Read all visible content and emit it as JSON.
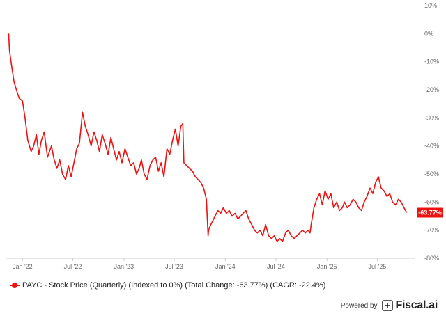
{
  "chart_data": {
    "type": "line",
    "x_tick_labels": [
      "Jan '22",
      "Jul '22",
      "Jan '23",
      "Jul '23",
      "Jan '24",
      "Jul '24",
      "Jan '25",
      "Jul '25"
    ],
    "y_tick_labels": [
      "10%",
      "0%",
      "-10%",
      "-20%",
      "-30%",
      "-40%",
      "-50%",
      "-60%",
      "-70%",
      "-80%"
    ],
    "ylim": [
      -80,
      10
    ],
    "xlim": [
      "2021-11-01",
      "2025-11-15"
    ],
    "grid": false,
    "legend_position": "bottom-left",
    "series": [
      {
        "name": "PAYC - Stock Price (Quarterly) (Indexed to 0%) (Total Change: -63.77%) (CAGR: -22.4%)",
        "color": "#ee1111",
        "x": [
          "2021-11-12",
          "2021-11-15",
          "2021-11-22",
          "2021-12-01",
          "2021-12-10",
          "2021-12-20",
          "2022-01-01",
          "2022-01-10",
          "2022-01-20",
          "2022-02-01",
          "2022-02-10",
          "2022-02-20",
          "2022-03-01",
          "2022-03-10",
          "2022-03-20",
          "2022-04-01",
          "2022-04-15",
          "2022-04-25",
          "2022-05-05",
          "2022-05-15",
          "2022-05-25",
          "2022-06-05",
          "2022-06-15",
          "2022-06-25",
          "2022-07-05",
          "2022-07-15",
          "2022-07-25",
          "2022-08-05",
          "2022-08-15",
          "2022-08-25",
          "2022-09-05",
          "2022-09-15",
          "2022-09-25",
          "2022-10-05",
          "2022-10-15",
          "2022-10-25",
          "2022-11-05",
          "2022-11-15",
          "2022-11-25",
          "2022-12-05",
          "2022-12-15",
          "2022-12-25",
          "2023-01-05",
          "2023-01-15",
          "2023-01-25",
          "2023-02-05",
          "2023-02-15",
          "2023-02-25",
          "2023-03-05",
          "2023-03-15",
          "2023-03-25",
          "2023-04-05",
          "2023-04-15",
          "2023-04-25",
          "2023-05-05",
          "2023-05-15",
          "2023-05-25",
          "2023-06-05",
          "2023-06-15",
          "2023-06-25",
          "2023-07-05",
          "2023-07-15",
          "2023-07-25",
          "2023-08-01",
          "2023-08-05",
          "2023-08-15",
          "2023-08-25",
          "2023-09-05",
          "2023-09-15",
          "2023-09-25",
          "2023-10-05",
          "2023-10-15",
          "2023-10-25",
          "2023-10-31",
          "2023-11-02",
          "2023-11-05",
          "2023-11-15",
          "2023-11-25",
          "2023-12-05",
          "2023-12-15",
          "2023-12-25",
          "2024-01-05",
          "2024-01-15",
          "2024-01-25",
          "2024-02-05",
          "2024-02-15",
          "2024-02-25",
          "2024-03-05",
          "2024-03-15",
          "2024-03-25",
          "2024-04-05",
          "2024-04-15",
          "2024-04-25",
          "2024-05-05",
          "2024-05-15",
          "2024-05-25",
          "2024-06-05",
          "2024-06-15",
          "2024-06-25",
          "2024-07-05",
          "2024-07-15",
          "2024-07-25",
          "2024-08-05",
          "2024-08-15",
          "2024-08-25",
          "2024-09-05",
          "2024-09-15",
          "2024-09-25",
          "2024-10-05",
          "2024-10-15",
          "2024-10-25",
          "2024-11-01",
          "2024-11-05",
          "2024-11-15",
          "2024-11-25",
          "2024-12-05",
          "2024-12-15",
          "2024-12-25",
          "2025-01-05",
          "2025-01-15",
          "2025-01-25",
          "2025-02-05",
          "2025-02-15",
          "2025-02-25",
          "2025-03-05",
          "2025-03-15",
          "2025-03-25",
          "2025-04-05",
          "2025-04-15",
          "2025-04-25",
          "2025-05-05",
          "2025-05-15",
          "2025-05-25",
          "2025-06-05",
          "2025-06-15",
          "2025-06-25",
          "2025-07-05",
          "2025-07-15",
          "2025-07-25",
          "2025-08-05",
          "2025-08-15",
          "2025-08-25",
          "2025-09-05",
          "2025-09-15",
          "2025-09-25",
          "2025-10-05",
          "2025-10-15"
        ],
        "values": [
          0,
          -6,
          -11,
          -17,
          -20,
          -23,
          -24,
          -30,
          -38,
          -42,
          -40,
          -36,
          -43,
          -38,
          -35,
          -44,
          -40,
          -45,
          -48,
          -45,
          -50,
          -52,
          -47,
          -51,
          -46,
          -41,
          -39,
          -28,
          -33,
          -36,
          -40,
          -35,
          -38,
          -42,
          -36,
          -39,
          -43,
          -37,
          -41,
          -45,
          -42,
          -46,
          -41,
          -44,
          -47,
          -46,
          -50,
          -48,
          -45,
          -50,
          -52,
          -47,
          -45,
          -44,
          -49,
          -46,
          -51,
          -41,
          -43,
          -38,
          -34,
          -40,
          -33,
          -32,
          -46,
          -47,
          -48,
          -49,
          -51,
          -52,
          -53,
          -55,
          -59,
          -72,
          -70,
          -69,
          -67,
          -65,
          -63,
          -64,
          -62,
          -64,
          -63,
          -65,
          -64,
          -66,
          -65,
          -64,
          -63,
          -66,
          -68,
          -70,
          -71,
          -70,
          -72,
          -68,
          -72,
          -73,
          -72,
          -74,
          -73,
          -74,
          -71,
          -70,
          -72,
          -73,
          -72,
          -71,
          -70,
          -71,
          -70,
          -71,
          -68,
          -62,
          -59,
          -57,
          -61,
          -56,
          -59,
          -57,
          -62,
          -60,
          -63,
          -62,
          -60,
          -62,
          -61,
          -59,
          -60,
          -62,
          -63,
          -60,
          -58,
          -55,
          -57,
          -53,
          -51,
          -55,
          -56,
          -58,
          -57,
          -60,
          -61,
          -59,
          -60,
          -62,
          -63.77
        ]
      }
    ]
  },
  "last_value_label": "-63.77%",
  "legend": {
    "label": "PAYC - Stock Price (Quarterly) (Indexed to 0%) (Total Change: -63.77%) (CAGR: -22.4%)"
  },
  "footer": {
    "powered_by": "Powered by",
    "brand": "Fiscal.ai"
  }
}
